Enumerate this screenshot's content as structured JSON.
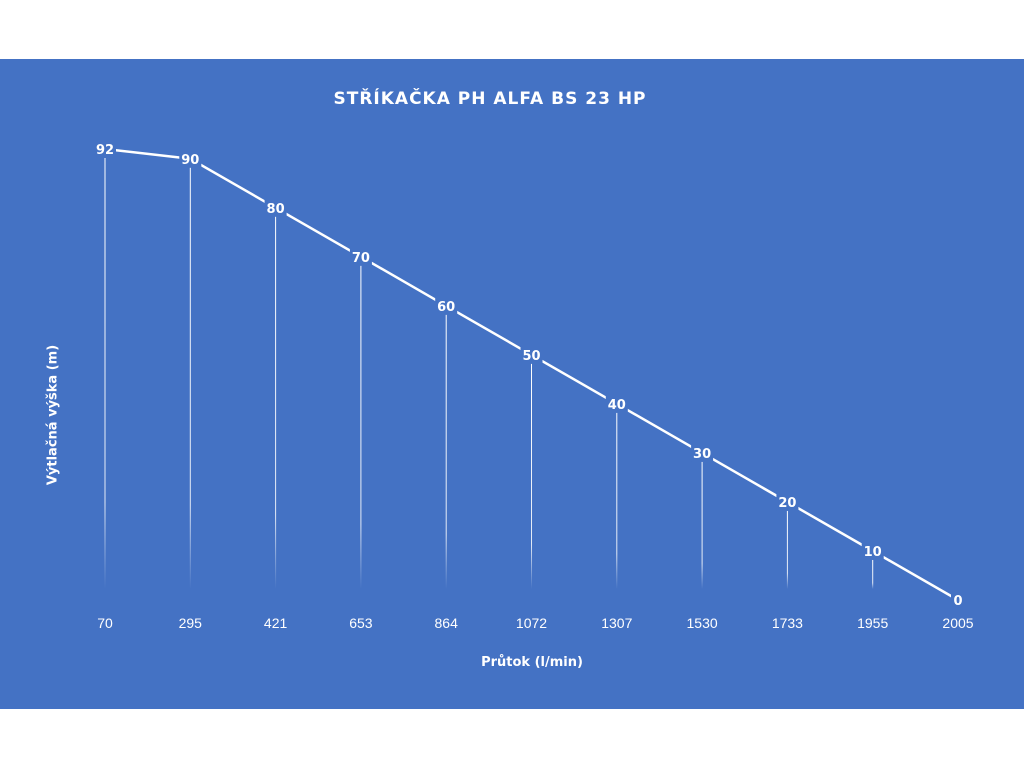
{
  "chart_data": {
    "type": "line",
    "title": "STŘÍKAČKA PH ALFA BS 23 HP",
    "xlabel": "Průtok (l/min)",
    "ylabel": "Výtlačná výška (m)",
    "categories": [
      "70",
      "295",
      "421",
      "653",
      "864",
      "1072",
      "1307",
      "1530",
      "1733",
      "1955",
      "2005"
    ],
    "series": [
      {
        "values": [
          92,
          90,
          80,
          70,
          60,
          50,
          40,
          30,
          20,
          10,
          0
        ]
      }
    ],
    "ylim": [
      0,
      92
    ],
    "data_labels": true,
    "drop_lines": true,
    "grid": false,
    "legend": "none"
  },
  "colors": {
    "background": "#4472c4",
    "line": "#ffffff",
    "text": "#ffffff"
  }
}
